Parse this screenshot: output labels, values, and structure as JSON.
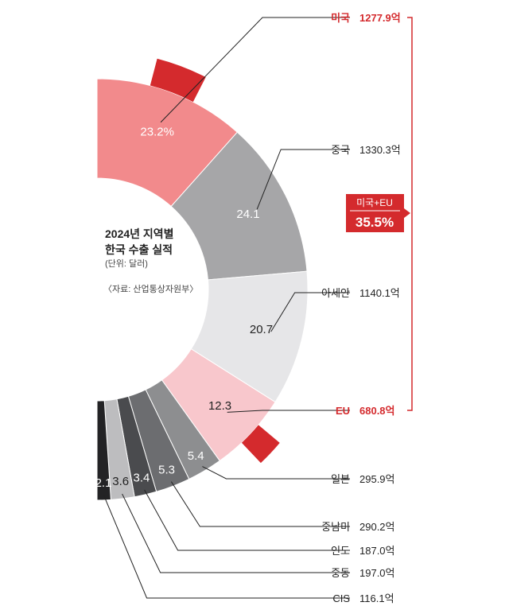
{
  "center": {
    "title_line1": "2024년 지역별",
    "title_line2": "한국 수출 실적",
    "unit": "(단위: 달러)",
    "source": "〈자료: 산업통상자원부〉"
  },
  "badge": {
    "label": "미국+EU",
    "value": "35.5%"
  },
  "chart_data": {
    "type": "pie",
    "slices": [
      {
        "region": "미국",
        "share": "23.2%",
        "share_value": 23.2,
        "amount": "1277.9억",
        "color": "#f28a8c",
        "highlight": true
      },
      {
        "region": "중국",
        "share": "24.1",
        "share_value": 24.1,
        "amount": "1330.3억",
        "color": "#a6a6a8",
        "highlight": false
      },
      {
        "region": "아세안",
        "share": "20.7",
        "share_value": 20.7,
        "amount": "1140.1억",
        "color": "#e6e6e8",
        "highlight": false
      },
      {
        "region": "EU",
        "share": "12.3",
        "share_value": 12.3,
        "amount": "680.8억",
        "color": "#f8c7cc",
        "highlight": true
      },
      {
        "region": "일본",
        "share": "5.4",
        "share_value": 5.4,
        "amount": "295.9억",
        "color": "#8d8e90",
        "highlight": false
      },
      {
        "region": "중남미",
        "share": "5.3",
        "share_value": 5.3,
        "amount": "290.2억",
        "color": "#6c6d70",
        "highlight": false
      },
      {
        "region": "인도",
        "share": "3.4",
        "share_value": 3.4,
        "amount": "187.0억",
        "color": "#4a4b4e",
        "highlight": false
      },
      {
        "region": "중동",
        "share": "3.6",
        "share_value": 3.6,
        "amount": "197.0억",
        "color": "#bdbdbf",
        "highlight": false
      },
      {
        "region": "CIS",
        "share": "2.1",
        "share_value": 2.1,
        "amount": "116.1억",
        "color": "#232325",
        "highlight": false
      }
    ],
    "highlight_color": "#d42a2d"
  }
}
